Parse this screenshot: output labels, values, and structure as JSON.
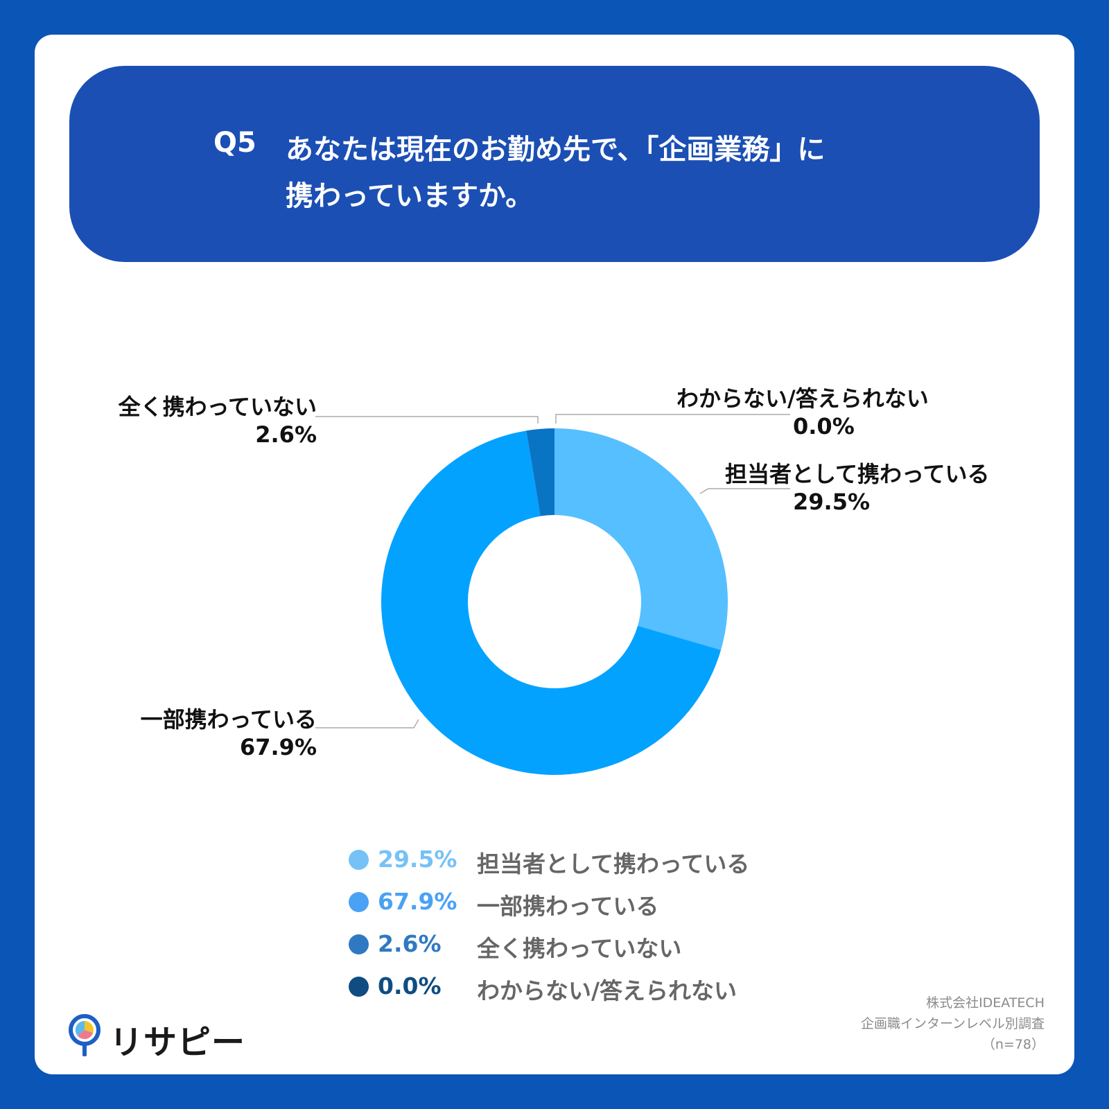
{
  "question": {
    "number": "Q5",
    "line1": "あなたは現在のお勤め先で、「企画業務」に",
    "line2": "携わっていますか。"
  },
  "chart_data": {
    "type": "pie",
    "donut": true,
    "slices": [
      {
        "label": "担当者として携わっている",
        "value": 29.5,
        "value_label": "29.5%",
        "color": "#56bfff",
        "legend_color": "#76c2f6"
      },
      {
        "label": "一部携わっている",
        "value": 67.9,
        "value_label": "67.9%",
        "color": "#03a2ff",
        "legend_color": "#4aa2f4"
      },
      {
        "label": "全く携わっていない",
        "value": 2.6,
        "value_label": "2.6%",
        "color": "#0a74c4",
        "legend_color": "#2f79c2"
      },
      {
        "label": "わからない/答えられない",
        "value": 0.0,
        "value_label": "0.0%",
        "color": "#0a4c86",
        "legend_color": "#0f4c82"
      }
    ]
  },
  "source": {
    "line1": "株式会社IDEATECH",
    "line2": "企画職インターンレベル別調査",
    "line3": "（n=78）"
  },
  "logo": {
    "text": "リサピー",
    "icon": "map-pin-pie-icon"
  }
}
